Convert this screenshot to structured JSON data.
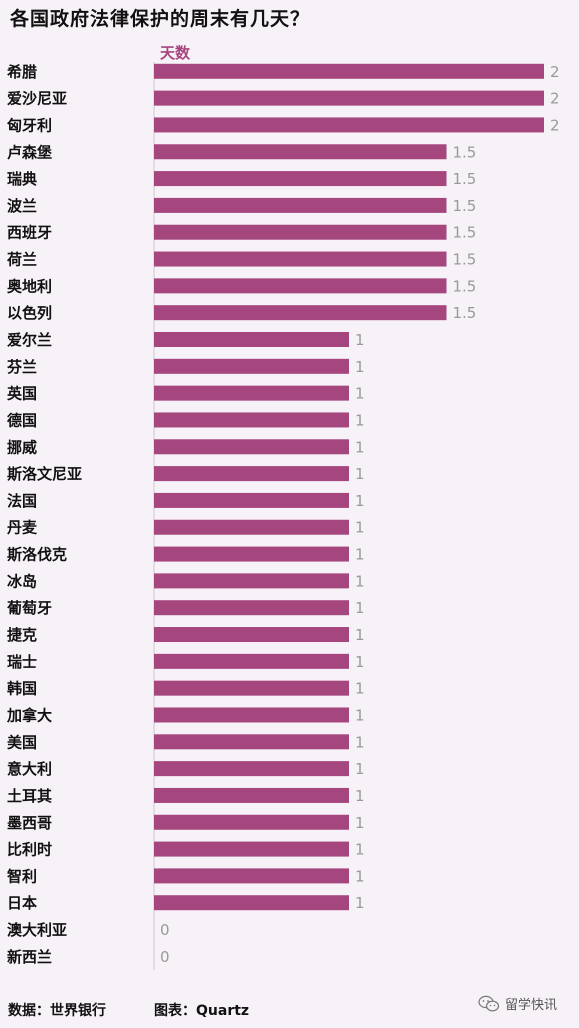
{
  "chart_data": {
    "type": "bar",
    "orientation": "horizontal",
    "title": "各国政府法律保护的周末有几天？",
    "xlabel": "天数",
    "xlim": [
      0,
      2
    ],
    "bar_color": "#a6467f",
    "categories": [
      "希腊",
      "爱沙尼亚",
      "匈牙利",
      "卢森堡",
      "瑞典",
      "波兰",
      "西班牙",
      "荷兰",
      "奥地利",
      "以色列",
      "爱尔兰",
      "芬兰",
      "英国",
      "德国",
      "挪威",
      "斯洛文尼亚",
      "法国",
      "丹麦",
      "斯洛伐克",
      "冰岛",
      "葡萄牙",
      "捷克",
      "瑞士",
      "韩国",
      "加拿大",
      "美国",
      "意大利",
      "土耳其",
      "墨西哥",
      "比利时",
      "智利",
      "日本",
      "澳大利亚",
      "新西兰"
    ],
    "values": [
      2,
      2,
      2,
      1.5,
      1.5,
      1.5,
      1.5,
      1.5,
      1.5,
      1.5,
      1,
      1,
      1,
      1,
      1,
      1,
      1,
      1,
      1,
      1,
      1,
      1,
      1,
      1,
      1,
      1,
      1,
      1,
      1,
      1,
      1,
      1,
      0,
      0
    ],
    "value_labels": [
      "2",
      "2",
      "2",
      "1.5",
      "1.5",
      "1.5",
      "1.5",
      "1.5",
      "1.5",
      "1.5",
      "1",
      "1",
      "1",
      "1",
      "1",
      "1",
      "1",
      "1",
      "1",
      "1",
      "1",
      "1",
      "1",
      "1",
      "1",
      "1",
      "1",
      "1",
      "1",
      "1",
      "1",
      "1",
      "0",
      "0"
    ]
  },
  "footer": {
    "source": "数据：世界银行",
    "credit": "图表：Quartz"
  },
  "watermark": {
    "text": "留学快讯",
    "icon": "wechat-icon"
  }
}
